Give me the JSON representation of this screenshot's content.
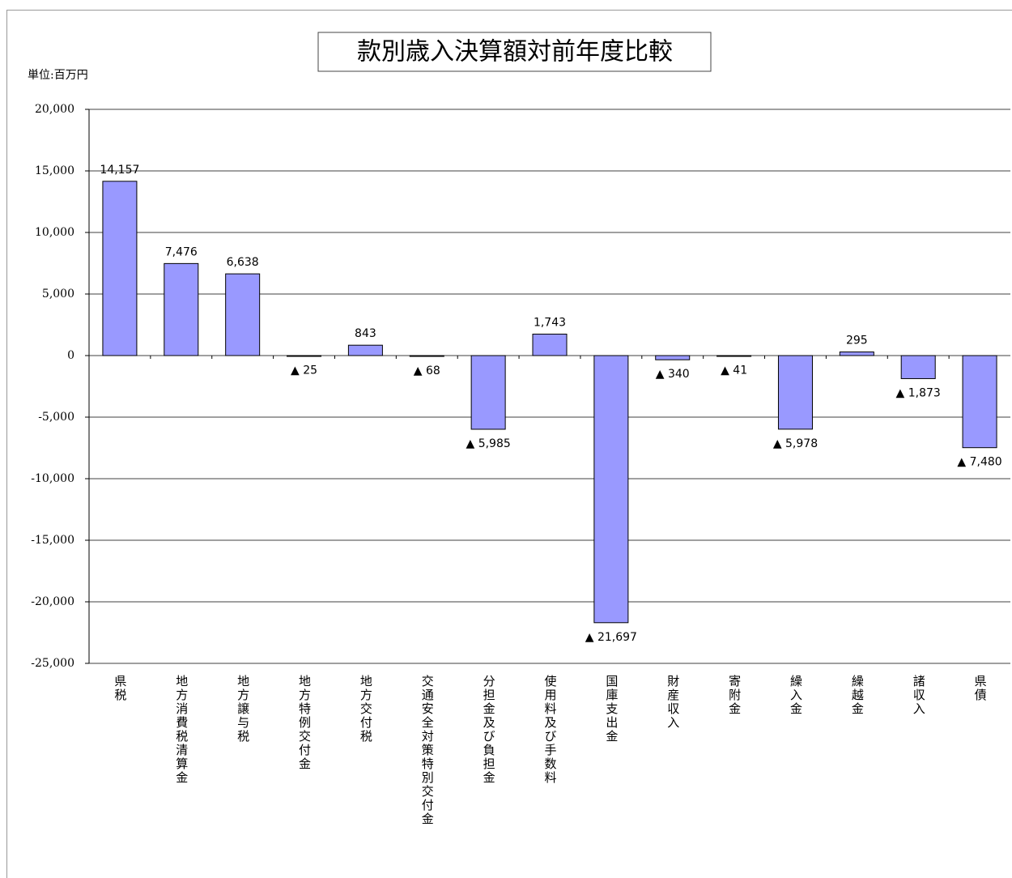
{
  "chart_data": {
    "type": "bar",
    "title": "款別歳入決算額対前年度比較",
    "unit": "単位:百万円",
    "categories": [
      "県税",
      "地方消費税清算金",
      "地方譲与税",
      "地方特例交付金",
      "地方交付税",
      "交通安全対策特別交付金",
      "分担金及び負担金",
      "使用料及び手数料",
      "国庫支出金",
      "財産収入",
      "寄附金",
      "繰入金",
      "繰越金",
      "諸収入",
      "県債"
    ],
    "values": [
      14157,
      7476,
      6638,
      -25,
      843,
      -68,
      -5985,
      1743,
      -21697,
      -340,
      -41,
      -5978,
      295,
      -1873,
      -7480
    ],
    "value_labels": [
      "14,157",
      "7,476",
      "6,638",
      "▲ 25",
      "843",
      "▲ 68",
      "▲ 5,985",
      "1,743",
      "▲ 21,697",
      "▲ 340",
      "▲ 41",
      "▲ 5,978",
      "295",
      "▲ 1,873",
      "▲ 7,480"
    ],
    "color": "#9999ff",
    "ylim": [
      -25000,
      20000
    ],
    "yticks": [
      {
        "value": -25000,
        "label": "-25,000"
      },
      {
        "value": -20000,
        "label": "-20,000"
      },
      {
        "value": -15000,
        "label": "-15,000"
      },
      {
        "value": -10000,
        "label": "-10,000"
      },
      {
        "value": -5000,
        "label": "-5,000"
      },
      0,
      {
        "value": 5000,
        "label": "5,000"
      },
      {
        "value": 10000,
        "label": "10,000"
      },
      {
        "value": 15000,
        "label": "15,000"
      },
      {
        "value": 20000,
        "label": "20,000"
      }
    ],
    "grid": true
  }
}
